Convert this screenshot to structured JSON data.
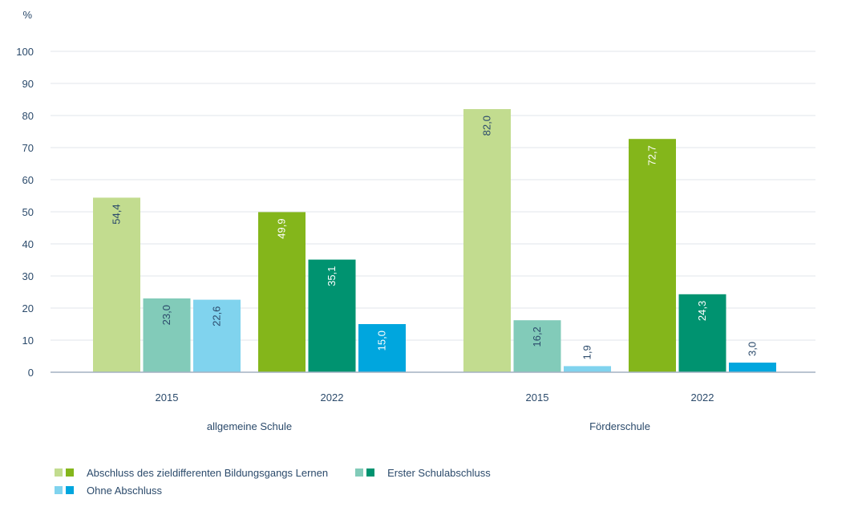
{
  "chart_data": {
    "type": "bar",
    "ylabel": "%",
    "ylim": [
      0,
      100
    ],
    "yticks": [
      0,
      10,
      20,
      30,
      40,
      50,
      60,
      70,
      80,
      90,
      100
    ],
    "grid": true,
    "groups": [
      {
        "label": "allgemeine Schule",
        "years": [
          {
            "label": "2015",
            "values": [
              54.4,
              23.0,
              22.6
            ],
            "labels": [
              "54,4",
              "23,0",
              "22,6"
            ],
            "shade": "light"
          },
          {
            "label": "2022",
            "values": [
              49.9,
              35.1,
              15.0
            ],
            "labels": [
              "49,9",
              "35,1",
              "15,0"
            ],
            "shade": "dark"
          }
        ]
      },
      {
        "label": "Förderschule",
        "years": [
          {
            "label": "2015",
            "values": [
              82.0,
              16.2,
              1.9
            ],
            "labels": [
              "82,0",
              "16,2",
              "1,9"
            ],
            "shade": "light"
          },
          {
            "label": "2022",
            "values": [
              72.7,
              24.3,
              3.0
            ],
            "labels": [
              "72,7",
              "24,3",
              "3,0"
            ],
            "shade": "dark"
          }
        ]
      }
    ],
    "series": [
      {
        "name": "Abschluss des zieldifferenten Bildungsgangs Lernen",
        "color_2015": "#c2dc8f",
        "color_2022": "#84b61b"
      },
      {
        "name": "Erster Schulabschluss",
        "color_2015": "#82cbb9",
        "color_2022": "#009370"
      },
      {
        "name": "Ohne Abschluss",
        "color_2015": "#80d3ee",
        "color_2022": "#00a6de"
      }
    ],
    "legend_position": "bottom-left"
  },
  "colors": {
    "text": "#2b4a6b",
    "grid": "#e6ebef",
    "axis": "#a3b1c2",
    "label_light_bg": "#2b4a6b",
    "label_dark_bg": "#ffffff"
  }
}
